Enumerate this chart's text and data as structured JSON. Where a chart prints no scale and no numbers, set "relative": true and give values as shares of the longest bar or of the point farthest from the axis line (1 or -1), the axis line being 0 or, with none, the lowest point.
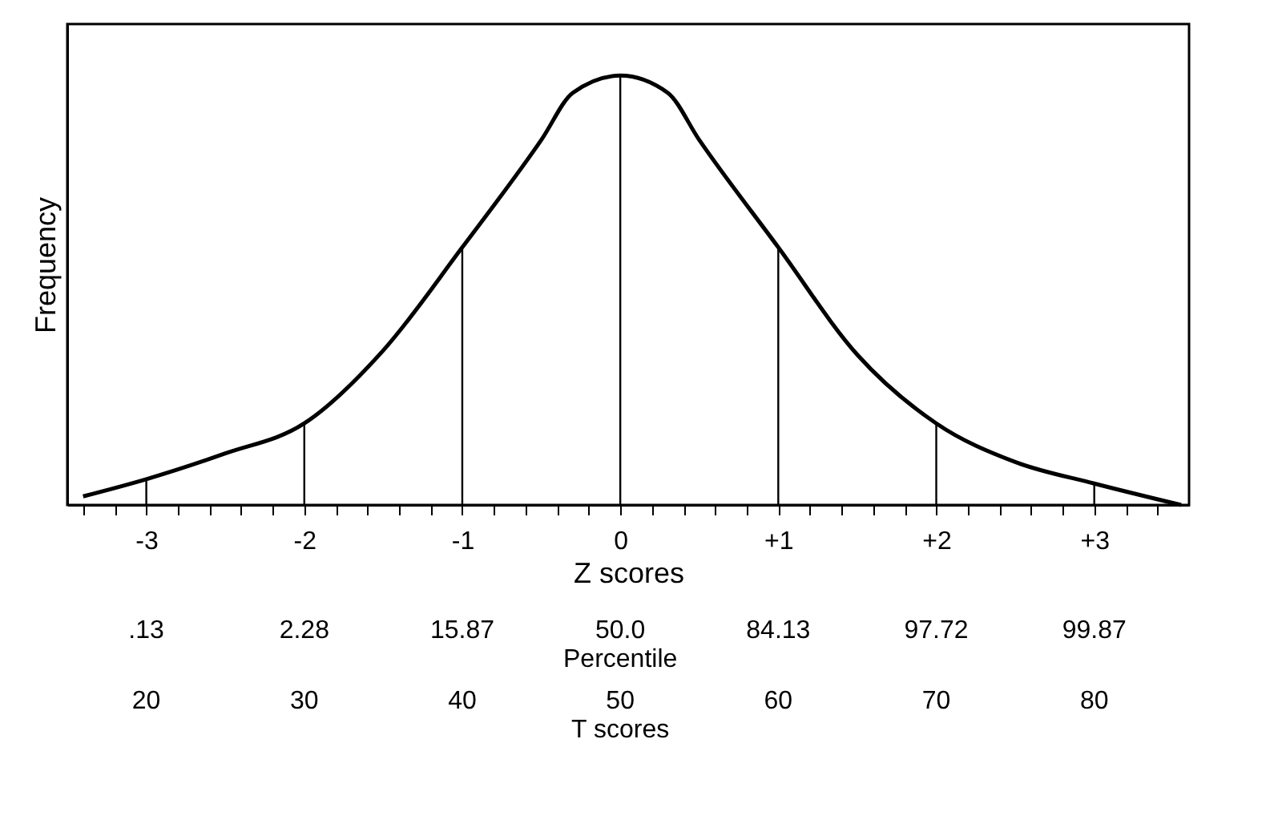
{
  "chart_data": {
    "type": "line",
    "relative": true,
    "ylabel": "Frequency",
    "xlabel": "Z scores",
    "xlim": [
      -3.5,
      3.6
    ],
    "xticks": [
      {
        "value": -3,
        "label": "-3"
      },
      {
        "value": -2,
        "label": "-2"
      },
      {
        "value": -1,
        "label": "-1"
      },
      {
        "value": 0,
        "label": "0"
      },
      {
        "value": 1,
        "label": "+1"
      },
      {
        "value": 2,
        "label": "+2"
      },
      {
        "value": 3,
        "label": "+3"
      },
      {
        "value": -3.4,
        "label": null
      },
      {
        "value": -3.2,
        "label": null
      },
      {
        "value": -2.8,
        "label": null
      },
      {
        "value": -2.6,
        "label": null
      },
      {
        "value": -2.4,
        "label": null
      },
      {
        "value": -2.2,
        "label": null
      },
      {
        "value": -1.8,
        "label": null
      },
      {
        "value": -1.6,
        "label": null
      },
      {
        "value": -1.4,
        "label": null
      },
      {
        "value": -1.2,
        "label": null
      },
      {
        "value": -0.8,
        "label": null
      },
      {
        "value": -0.6,
        "label": null
      },
      {
        "value": -0.4,
        "label": null
      },
      {
        "value": -0.2,
        "label": null
      },
      {
        "value": 0.2,
        "label": null
      },
      {
        "value": 0.4,
        "label": null
      },
      {
        "value": 0.6,
        "label": null
      },
      {
        "value": 0.8,
        "label": null
      },
      {
        "value": 1.2,
        "label": null
      },
      {
        "value": 1.4,
        "label": null
      },
      {
        "value": 1.6,
        "label": null
      },
      {
        "value": 1.8,
        "label": null
      },
      {
        "value": 2.2,
        "label": null
      },
      {
        "value": 2.4,
        "label": null
      },
      {
        "value": 2.6,
        "label": null
      },
      {
        "value": 2.8,
        "label": null
      },
      {
        "value": 3.2,
        "label": null
      },
      {
        "value": 3.4,
        "label": null
      }
    ],
    "grid": false,
    "series": [
      {
        "color": "#000000",
        "x": [
          -3.4,
          -3,
          -2.5,
          -2,
          -1.5,
          -1,
          -0.5,
          -0.3,
          0,
          0.3,
          0.5,
          1,
          1.5,
          2,
          2.5,
          3,
          3.55
        ],
        "values": [
          0.02,
          0.06,
          0.12,
          0.19,
          0.36,
          0.6,
          0.85,
          0.96,
          1,
          0.96,
          0.85,
          0.6,
          0.35,
          0.19,
          0.1,
          0.05,
          0
        ]
      },
      {
        "type": "bar",
        "color": "#000000",
        "x": [
          -3,
          -2,
          -1,
          0,
          1,
          2,
          3
        ],
        "values": [
          0.06,
          0.19,
          0.6,
          1,
          0.6,
          0.19,
          0.05
        ]
      }
    ],
    "annotations": [
      ".13",
      "2.28",
      "15.87",
      "50.0",
      "84.13",
      "97.72",
      "99.87",
      "Percentile",
      "20",
      "30",
      "40",
      "50",
      "60",
      "70",
      "80",
      "T scores"
    ]
  }
}
